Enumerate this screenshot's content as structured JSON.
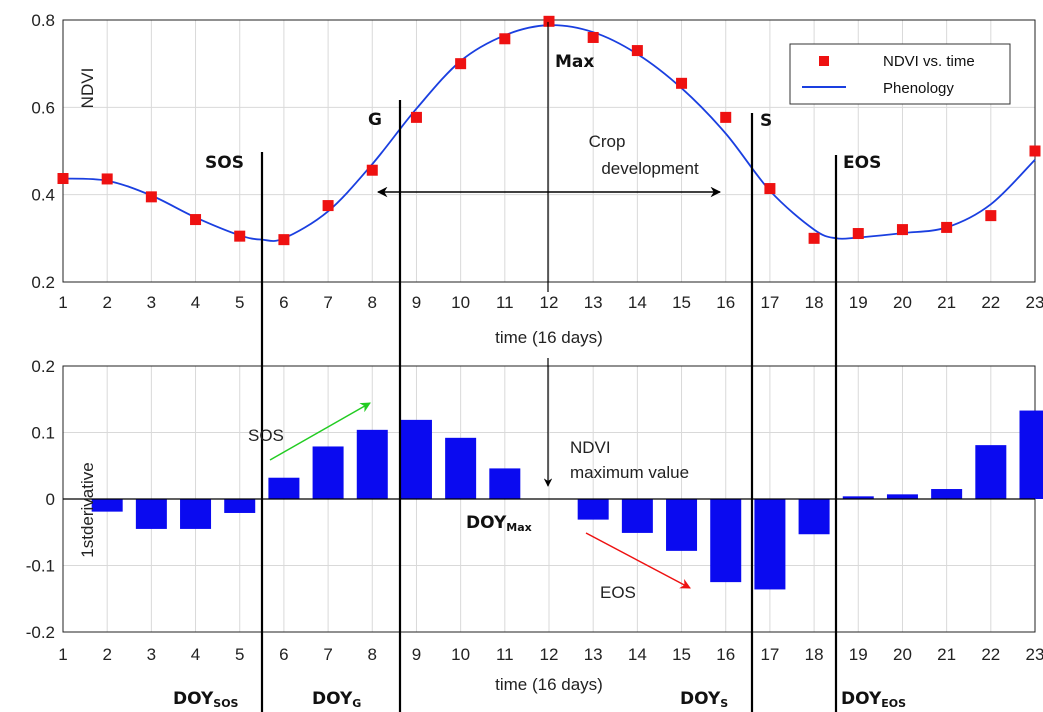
{
  "chart_data": [
    {
      "type": "line",
      "ylabel": "NDVI",
      "xlabel": "time (16 days)",
      "xlim": [
        1,
        23
      ],
      "ylim": [
        0.2,
        0.8
      ],
      "x_ticks": [
        "1",
        "2",
        "3",
        "4",
        "5",
        "6",
        "7",
        "8",
        "9",
        "10",
        "11",
        "12",
        "13",
        "14",
        "15",
        "16",
        "17",
        "18",
        "19",
        "20",
        "21",
        "22",
        "23"
      ],
      "y_ticks": [
        "0.2",
        "0.4",
        "0.6",
        "0.8"
      ],
      "grid": true,
      "legend_position": "top-right",
      "series": [
        {
          "name": "NDVI vs. time",
          "marker": "square",
          "color": "#ee1111",
          "x": [
            1,
            2,
            3,
            4,
            5,
            6,
            7,
            8,
            9,
            10,
            11,
            12,
            13,
            14,
            15,
            16,
            17,
            18,
            19,
            20,
            21,
            22,
            23
          ],
          "y": [
            0.437,
            0.436,
            0.395,
            0.343,
            0.305,
            0.297,
            0.375,
            0.456,
            0.577,
            0.7,
            0.757,
            0.797,
            0.76,
            0.73,
            0.655,
            0.577,
            0.414,
            0.3,
            0.311,
            0.32,
            0.325,
            0.352,
            0.5
          ]
        },
        {
          "name": "Phenology",
          "line": "solid",
          "color": "#1a3fe0",
          "x": [
            1,
            2,
            3,
            4,
            5,
            5.5,
            6,
            7,
            8,
            9,
            10,
            11,
            12,
            13,
            14,
            15,
            16,
            17,
            18,
            18.5,
            19,
            20,
            21,
            22,
            23
          ],
          "y": [
            0.437,
            0.432,
            0.398,
            0.348,
            0.307,
            0.297,
            0.3,
            0.362,
            0.47,
            0.597,
            0.706,
            0.765,
            0.788,
            0.772,
            0.722,
            0.644,
            0.54,
            0.409,
            0.32,
            0.3,
            0.302,
            0.312,
            0.325,
            0.378,
            0.48
          ]
        }
      ],
      "annotations": [
        {
          "text": "SOS",
          "x": 5.5
        },
        {
          "text": "G",
          "x": 8.7
        },
        {
          "text": "Max",
          "x": 12
        },
        {
          "text": "S",
          "x": 16.6
        },
        {
          "text": "EOS",
          "x": 18.5
        },
        {
          "text": "Crop",
          "x": 12.6,
          "y": 0.635
        },
        {
          "text": "development",
          "x": 12.6,
          "y": 0.58
        }
      ]
    },
    {
      "type": "bar",
      "ylabel": "1stderivative",
      "xlabel": "time (16 days)",
      "xlim": [
        1,
        23
      ],
      "ylim": [
        -0.2,
        0.2
      ],
      "x_ticks": [
        "1",
        "2",
        "3",
        "4",
        "5",
        "6",
        "7",
        "8",
        "9",
        "10",
        "11",
        "12",
        "13",
        "14",
        "15",
        "16",
        "17",
        "18",
        "19",
        "20",
        "21",
        "22",
        "23"
      ],
      "y_ticks": [
        "-0.2",
        "-0.1",
        "0",
        "0.1",
        "0.2"
      ],
      "grid": true,
      "color": "#0a0af0",
      "x": [
        2,
        3,
        4,
        5,
        6,
        7,
        8,
        9,
        10,
        11,
        13,
        14,
        15,
        16,
        17,
        18,
        19,
        20,
        21,
        22,
        23
      ],
      "values": [
        -0.019,
        -0.045,
        -0.045,
        -0.021,
        0.032,
        0.079,
        0.104,
        0.119,
        0.092,
        0.046,
        -0.031,
        -0.051,
        -0.078,
        -0.125,
        -0.136,
        -0.053,
        0.004,
        0.007,
        0.015,
        0.081,
        0.133
      ],
      "annotations": [
        {
          "text": "SOS",
          "x": 6.3,
          "y": 0.104
        },
        {
          "text": "NDVI",
          "x": 13.3,
          "y": 0.083
        },
        {
          "text": "maximum value",
          "x": 13.3,
          "y": 0.044
        },
        {
          "text": "EOS",
          "x": 14.2,
          "y": -0.14
        }
      ],
      "period_labels": [
        {
          "main": "DOY",
          "sub": "SOS"
        },
        {
          "main": "DOY",
          "sub": "G"
        },
        {
          "main": "DOY",
          "sub": "Max"
        },
        {
          "main": "DOY",
          "sub": "S"
        },
        {
          "main": "DOY",
          "sub": "EOS"
        }
      ]
    }
  ],
  "colors": {
    "marker": "#ee1111",
    "curve": "#1a3fe0",
    "bars": "#0a0af0",
    "sos_arrow": "#22cc22",
    "eos_arrow": "#ee1111"
  }
}
